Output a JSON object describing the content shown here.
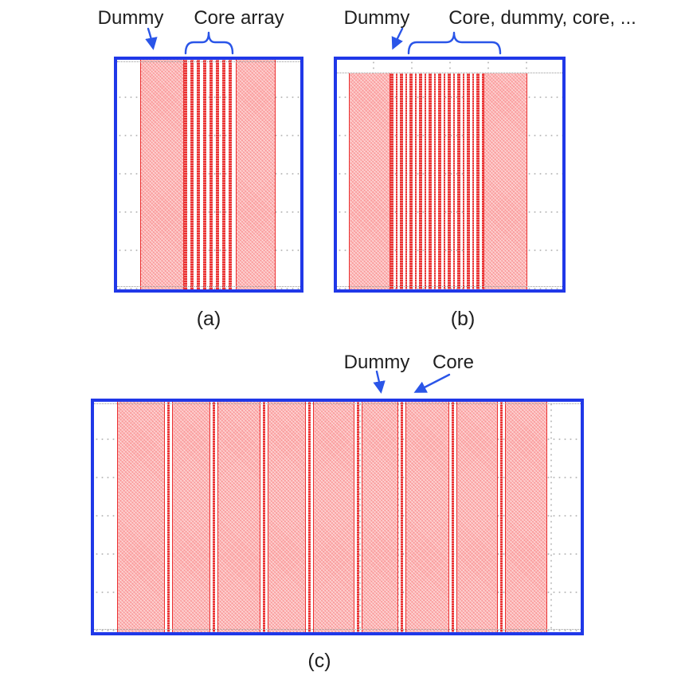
{
  "figure": {
    "panel_a": {
      "caption": "(a)",
      "dummy_label": "Dummy",
      "core_label": "Core array",
      "core_stripe_count": 8
    },
    "panel_b": {
      "caption": "(b)",
      "dummy_label": "Dummy",
      "core_label": "Core, dummy, core, ...",
      "core_pair_count": 10
    },
    "panel_c": {
      "caption": "(c)",
      "dummy_label": "Dummy",
      "core_label": "Core",
      "core_group_count": 8
    }
  },
  "colors": {
    "border_blue": "#2038e8",
    "annotation_blue": "#2a55e8",
    "fill_pink": "#fa9e9e",
    "stripe_red": "#ea3131",
    "grid_gray": "#bfbfbf",
    "text": "#1f1f1f"
  }
}
